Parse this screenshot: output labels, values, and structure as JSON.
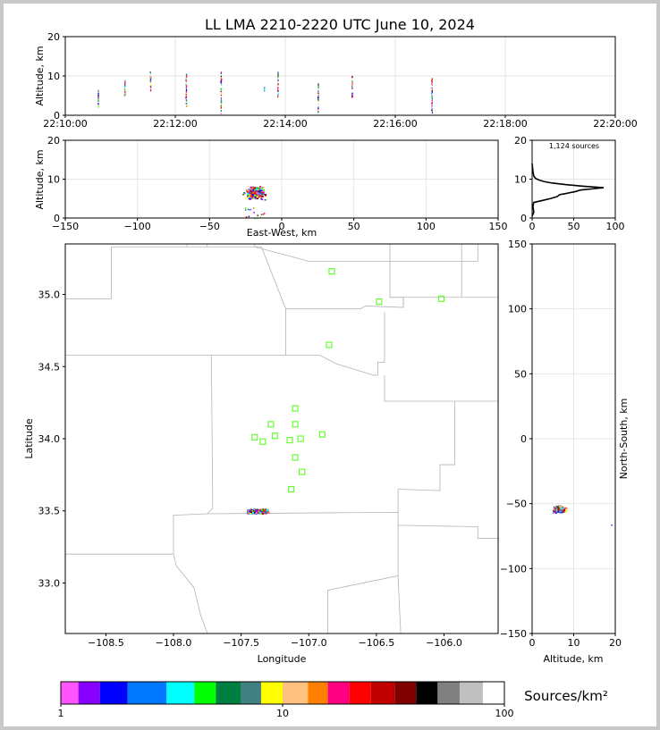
{
  "title": "LL LMA 2210-2220 UTC June 10, 2024",
  "time_height": {
    "ylabel": "Altitude, km",
    "ylim": [
      0,
      20
    ],
    "yticks": [
      "0",
      "10",
      "20"
    ],
    "xticks": [
      "22:10:00",
      "22:12:00",
      "22:14:00",
      "22:16:00",
      "22:18:00",
      "22:20:00"
    ],
    "xlim_seconds": [
      0,
      600
    ],
    "bursts": [
      {
        "t": 36,
        "zmin": 1.5,
        "zmax": 6.5
      },
      {
        "t": 65,
        "zmin": 4.5,
        "zmax": 10.0
      },
      {
        "t": 93,
        "zmin": 6.0,
        "zmax": 11.0
      },
      {
        "t": 132,
        "zmin": 2.0,
        "zmax": 10.5
      },
      {
        "t": 170,
        "zmin": 0.3,
        "zmax": 11.0
      },
      {
        "t": 217,
        "zmin": 6.0,
        "zmax": 7.0
      },
      {
        "t": 232,
        "zmin": 4.5,
        "zmax": 11.0
      },
      {
        "t": 276,
        "zmin": 0.5,
        "zmax": 8.0
      },
      {
        "t": 313,
        "zmin": 4.5,
        "zmax": 10.0
      },
      {
        "t": 400,
        "zmin": 0.5,
        "zmax": 9.5
      }
    ]
  },
  "ew_height": {
    "xlabel": "East-West, km",
    "ylabel": "Altitude, km",
    "xlim": [
      -150,
      150
    ],
    "ylim": [
      0,
      20
    ],
    "xticks": [
      "−150",
      "−100",
      "−50",
      "0",
      "50",
      "100",
      "150"
    ],
    "yticks": [
      "0",
      "10",
      "20"
    ]
  },
  "histogram": {
    "label": "1,124 sources",
    "xlim": [
      0,
      100
    ],
    "ylim": [
      0,
      20
    ],
    "xticks": [
      "0",
      "50",
      "100"
    ],
    "yticks": [
      "0",
      "10",
      "20"
    ],
    "profile": [
      [
        0,
        0.5
      ],
      [
        2,
        1.5
      ],
      [
        1,
        3.0
      ],
      [
        2,
        4.0
      ],
      [
        12,
        4.5
      ],
      [
        22,
        5.0
      ],
      [
        30,
        5.5
      ],
      [
        33,
        6.0
      ],
      [
        38,
        6.2
      ],
      [
        52,
        6.8
      ],
      [
        58,
        7.2
      ],
      [
        72,
        7.5
      ],
      [
        86,
        7.8
      ],
      [
        60,
        8.2
      ],
      [
        40,
        8.6
      ],
      [
        24,
        9.0
      ],
      [
        14,
        9.4
      ],
      [
        8,
        9.8
      ],
      [
        4,
        10.2
      ],
      [
        2,
        10.8
      ],
      [
        1,
        12.0
      ],
      [
        0,
        14.0
      ]
    ]
  },
  "plan_view": {
    "xlabel": "Longitude",
    "ylabel": "Latitude",
    "xlim": [
      -108.8,
      -105.6
    ],
    "ylim": [
      32.65,
      35.35
    ],
    "xticks": [
      "−108.5",
      "−108.0",
      "−107.5",
      "−107.0",
      "−106.5",
      "−106.0"
    ],
    "yticks": [
      "33.0",
      "33.5",
      "34.0",
      "34.5",
      "35.0"
    ],
    "stations": [
      [
        -106.83,
        35.16
      ],
      [
        -106.48,
        34.95
      ],
      [
        -106.02,
        34.97
      ],
      [
        -106.85,
        34.65
      ],
      [
        -107.1,
        34.21
      ],
      [
        -107.28,
        34.1
      ],
      [
        -107.1,
        34.1
      ],
      [
        -107.4,
        34.01
      ],
      [
        -107.25,
        34.02
      ],
      [
        -107.14,
        33.99
      ],
      [
        -107.34,
        33.98
      ],
      [
        -107.06,
        34.0
      ],
      [
        -106.9,
        34.03
      ],
      [
        -107.1,
        33.87
      ],
      [
        -107.05,
        33.77
      ],
      [
        -107.13,
        33.65
      ]
    ]
  },
  "ns_height": {
    "xlabel": "Altitude, km",
    "ylabel": "North-South, km",
    "xlim": [
      0,
      20
    ],
    "ylim": [
      -150,
      150
    ],
    "xticks": [
      "0",
      "10",
      "20"
    ],
    "yticks": [
      "−150",
      "−100",
      "−50",
      "0",
      "50",
      "100",
      "150"
    ]
  },
  "colorbar": {
    "label": "Sources/km²",
    "ticks": [
      "1",
      "10",
      "100"
    ],
    "colors": [
      "#ff55ff",
      "#8800ff",
      "#0000ff",
      "#0077ff",
      "#00ffff",
      "#00ff00",
      "#008040",
      "#408080",
      "#ffff00",
      "#ffc080",
      "#ff8000",
      "#ff0080",
      "#ff0000",
      "#c00000",
      "#800000",
      "#000000",
      "#808080",
      "#c0c0c0",
      "#ffffff"
    ]
  },
  "chart_data": [
    {
      "type": "scatter",
      "title": "LL LMA 2210-2220 UTC June 10, 2024",
      "xlabel": "",
      "ylabel": "Altitude, km",
      "x": [
        "22:10:36",
        "22:11:05",
        "22:11:33",
        "22:12:12",
        "22:12:50",
        "22:13:37",
        "22:13:52",
        "22:14:36",
        "22:15:13",
        "22:16:40"
      ],
      "ylim": [
        0,
        20
      ],
      "xlim": [
        "22:10:00",
        "22:20:00"
      ],
      "grid": true
    },
    {
      "type": "scatter",
      "xlabel": "East-West, km",
      "ylabel": "Altitude, km",
      "xlim": [
        -150,
        150
      ],
      "ylim": [
        0,
        20
      ],
      "x_range_of_sources": [
        -32,
        -8
      ],
      "y_range_of_sources": [
        0,
        11
      ],
      "grid": true
    },
    {
      "type": "line",
      "xlim": [
        0,
        100
      ],
      "ylim": [
        0,
        20
      ],
      "annotation": "1,124 sources",
      "peak_count": 86,
      "peak_altitude": 7.8
    },
    {
      "type": "scatter",
      "xlabel": "Longitude",
      "ylabel": "Latitude",
      "xlim": [
        -108.8,
        -105.6
      ],
      "ylim": [
        32.65,
        35.35
      ],
      "source_cluster_center": [
        -107.4,
        33.5
      ],
      "grid": false
    },
    {
      "type": "scatter",
      "xlabel": "Altitude, km",
      "ylabel": "North-South, km",
      "xlim": [
        0,
        20
      ],
      "ylim": [
        -150,
        150
      ],
      "source_cluster_center": [
        7,
        -54
      ],
      "grid": true
    },
    {
      "type": "heatmap",
      "label": "Sources/km²",
      "scale": "log",
      "range": [
        1,
        100
      ]
    }
  ]
}
